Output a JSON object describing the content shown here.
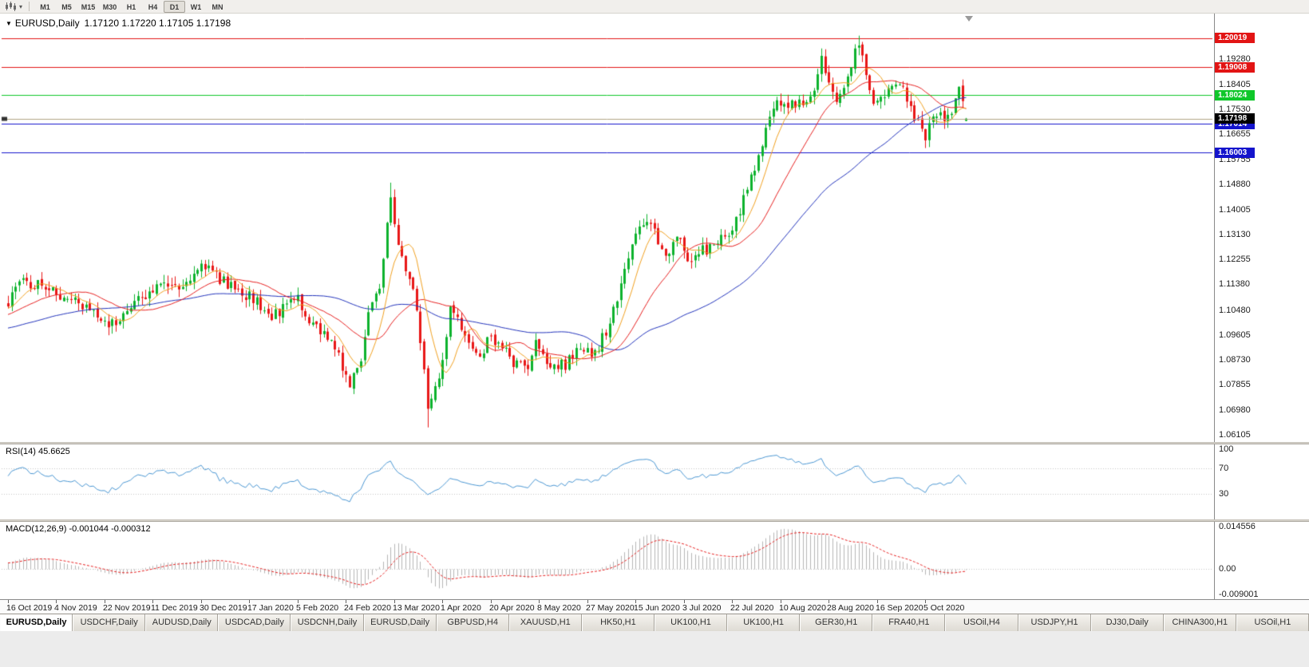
{
  "toolbar": {
    "timeframes": [
      "M1",
      "M5",
      "M15",
      "M30",
      "H1",
      "H4",
      "D1",
      "W1",
      "MN"
    ],
    "active_timeframe": "D1"
  },
  "chart": {
    "symbol": "EURUSD,Daily",
    "ohlc_text": "1.17120 1.17220 1.17105 1.17198",
    "axis_labels": [
      "1.19280",
      "1.18405",
      "1.17530",
      "1.16655",
      "1.15755",
      "1.14880",
      "1.14005",
      "1.13130",
      "1.12255",
      "1.11380",
      "1.10480",
      "1.09605",
      "1.08730",
      "1.07855",
      "1.06980",
      "1.06105"
    ],
    "level_badges": [
      {
        "value": "1.20019",
        "color": "#e21414"
      },
      {
        "value": "1.19008",
        "color": "#e21414"
      },
      {
        "value": "1.18024",
        "color": "#0fc72a"
      },
      {
        "value": "1.17014",
        "color": "#1414cc"
      },
      {
        "value": "1.16003",
        "color": "#1414cc"
      },
      {
        "value": "1.17198",
        "color": "#000000"
      }
    ]
  },
  "rsi_panel": {
    "label": "RSI(14) 45.6625",
    "axis_labels": [
      "100",
      "70",
      "30"
    ]
  },
  "macd_panel": {
    "label": "MACD(12,26,9) -0.001044 -0.000312",
    "axis_labels": [
      "0.014556",
      "0.00",
      "-0.009001"
    ]
  },
  "time_axis": {
    "labels": [
      "16 Oct 2019",
      "4 Nov 2019",
      "22 Nov 2019",
      "11 Dec 2019",
      "30 Dec 2019",
      "17 Jan 2020",
      "5 Feb 2020",
      "24 Feb 2020",
      "13 Mar 2020",
      "1 Apr 2020",
      "20 Apr 2020",
      "8 May 2020",
      "27 May 2020",
      "15 Jun 2020",
      "3 Jul 2020",
      "22 Jul 2020",
      "10 Aug 2020",
      "28 Aug 2020",
      "16 Sep 2020",
      "5 Oct 2020"
    ],
    "bars_per_label": 13
  },
  "tabs": {
    "items": [
      {
        "label": "EURUSD,Daily",
        "active": true
      },
      {
        "label": "USDCHF,Daily",
        "active": false
      },
      {
        "label": "AUDUSD,Daily",
        "active": false
      },
      {
        "label": "USDCAD,Daily",
        "active": false
      },
      {
        "label": "USDCNH,Daily",
        "active": false
      },
      {
        "label": "EURUSD,Daily",
        "active": false
      },
      {
        "label": "GBPUSD,H4",
        "active": false
      },
      {
        "label": "XAUUSD,H1",
        "active": false
      },
      {
        "label": "HK50,H1",
        "active": false
      },
      {
        "label": "UK100,H1",
        "active": false
      },
      {
        "label": "UK100,H1",
        "active": false
      },
      {
        "label": "GER30,H1",
        "active": false
      },
      {
        "label": "FRA40,H1",
        "active": false
      },
      {
        "label": "USOil,H4",
        "active": false
      },
      {
        "label": "USDJPY,H1",
        "active": false
      },
      {
        "label": "DJ30,Daily",
        "active": false
      },
      {
        "label": "CHINA300,H1",
        "active": false
      },
      {
        "label": "USOil,H1",
        "active": false
      }
    ]
  },
  "chart_data": {
    "type": "candlestick",
    "symbol": "EURUSD",
    "timeframe": "Daily",
    "bars": 259,
    "last_ohlc": {
      "open": 1.1712,
      "high": 1.1722,
      "low": 1.17105,
      "close": 1.17198
    },
    "y_range": [
      1.0596,
      1.2052
    ],
    "price_anchors": [
      [
        -60,
        1.099
      ],
      [
        -45,
        1.093
      ],
      [
        -30,
        1.096
      ],
      [
        -15,
        1.101
      ],
      [
        0,
        1.107
      ],
      [
        3,
        1.1155
      ],
      [
        8,
        1.1135
      ],
      [
        13,
        1.111
      ],
      [
        20,
        1.106
      ],
      [
        26,
        1.1005
      ],
      [
        31,
        1.1015
      ],
      [
        34,
        1.1075
      ],
      [
        40,
        1.113
      ],
      [
        46,
        1.1115
      ],
      [
        52,
        1.1205
      ],
      [
        56,
        1.117
      ],
      [
        60,
        1.1125
      ],
      [
        65,
        1.1095
      ],
      [
        71,
        1.1025
      ],
      [
        75,
        1.107
      ],
      [
        78,
        1.109
      ],
      [
        82,
        1.1
      ],
      [
        87,
        1.0945
      ],
      [
        92,
        1.079
      ],
      [
        95,
        1.085
      ],
      [
        97,
        1.1025
      ],
      [
        100,
        1.1135
      ],
      [
        103,
        1.144
      ],
      [
        105,
        1.129
      ],
      [
        107,
        1.118
      ],
      [
        109,
        1.111
      ],
      [
        111,
        1.095
      ],
      [
        113,
        1.07
      ],
      [
        115,
        1.077
      ],
      [
        117,
        1.087
      ],
      [
        119,
        1.108
      ],
      [
        121,
        1.103
      ],
      [
        123,
        1.094
      ],
      [
        127,
        1.0865
      ],
      [
        130,
        1.0965
      ],
      [
        133,
        1.0905
      ],
      [
        136,
        1.087
      ],
      [
        140,
        1.0835
      ],
      [
        142,
        1.0945
      ],
      [
        145,
        1.0845
      ],
      [
        150,
        1.0855
      ],
      [
        155,
        1.092
      ],
      [
        158,
        1.0895
      ],
      [
        161,
        1.0975
      ],
      [
        164,
        1.11
      ],
      [
        168,
        1.129
      ],
      [
        171,
        1.1365
      ],
      [
        174,
        1.132
      ],
      [
        176,
        1.1245
      ],
      [
        178,
        1.1255
      ],
      [
        180,
        1.1305
      ],
      [
        183,
        1.1225
      ],
      [
        186,
        1.125
      ],
      [
        190,
        1.1275
      ],
      [
        193,
        1.13
      ],
      [
        196,
        1.136
      ],
      [
        199,
        1.147
      ],
      [
        202,
        1.16
      ],
      [
        205,
        1.172
      ],
      [
        207,
        1.178
      ],
      [
        210,
        1.1765
      ],
      [
        213,
        1.1785
      ],
      [
        216,
        1.179
      ],
      [
        219,
        1.193
      ],
      [
        221,
        1.184
      ],
      [
        223,
        1.1795
      ],
      [
        225,
        1.183
      ],
      [
        227,
        1.19
      ],
      [
        229,
        1.199
      ],
      [
        231,
        1.1855
      ],
      [
        233,
        1.179
      ],
      [
        236,
        1.1815
      ],
      [
        239,
        1.185
      ],
      [
        241,
        1.184
      ],
      [
        243,
        1.176
      ],
      [
        245,
        1.1695
      ],
      [
        247,
        1.1635
      ],
      [
        249,
        1.1735
      ],
      [
        251,
        1.172
      ],
      [
        253,
        1.173
      ],
      [
        255,
        1.178
      ],
      [
        256,
        1.1825
      ],
      [
        257,
        1.1785
      ],
      [
        258,
        1.172
      ]
    ],
    "key_extremes": [
      {
        "i": 92,
        "low": 1.0778
      },
      {
        "i": 103,
        "high": 1.1495
      },
      {
        "i": 113,
        "low": 1.0636
      },
      {
        "i": 219,
        "high": 1.1966
      },
      {
        "i": 229,
        "high": 1.2011
      },
      {
        "i": 258,
        "open": 1.1712,
        "high": 1.1722,
        "low": 1.17105,
        "close": 1.17198
      }
    ],
    "horizontal_levels": [
      {
        "price": 1.20019,
        "color": "#e21414"
      },
      {
        "price": 1.19008,
        "color": "#e21414"
      },
      {
        "price": 1.18024,
        "color": "#0fc72a"
      },
      {
        "price": 1.17014,
        "color": "#1414cc"
      },
      {
        "price": 1.16003,
        "color": "#1414cc"
      }
    ],
    "bid_line": {
      "price": 1.17198,
      "color": "#b0a484"
    },
    "moving_averages": [
      {
        "period": 55,
        "color": "#2233bb"
      },
      {
        "period": 21,
        "color": "#e62020"
      },
      {
        "period": 8,
        "color": "#f0a020"
      }
    ],
    "rsi": {
      "period": 14,
      "current": 45.6625,
      "levels": [
        70,
        30
      ],
      "scale": [
        0,
        100
      ],
      "color": "#4a96d2",
      "level_line_color": "#c4c4c4"
    },
    "macd": {
      "fast": 12,
      "slow": 26,
      "signal_period": 9,
      "current_macd": -0.001044,
      "current_signal": -0.000312,
      "scale": [
        -0.009001,
        0.014556
      ],
      "histogram_color": "#b6b6b6",
      "signal_color": "#e62020",
      "zero_line_color": "#c4c4c4"
    },
    "candle_colors": {
      "up": "#0db22d",
      "down": "#e81717"
    }
  }
}
